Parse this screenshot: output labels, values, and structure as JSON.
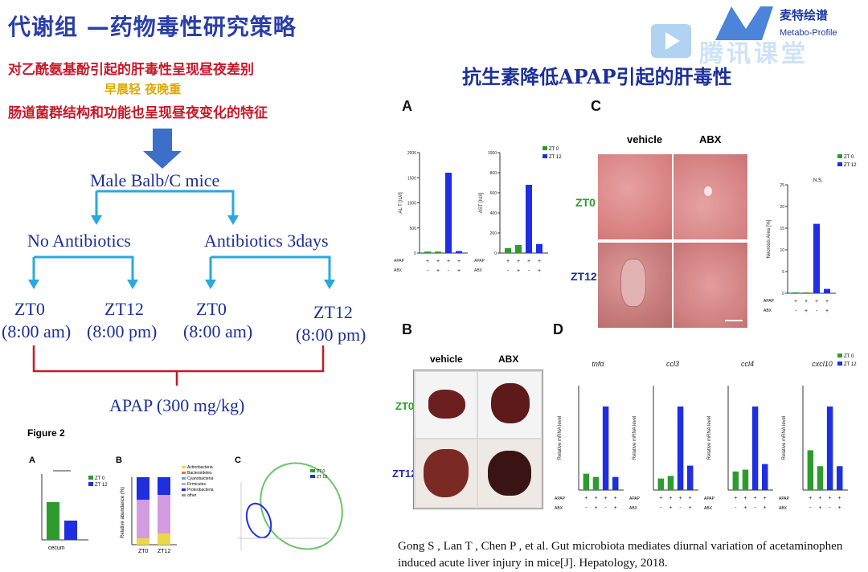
{
  "title": "代谢组 —药物毒性研究策略",
  "logo": {
    "brand_cn": "麦特绘谱",
    "brand_en": "Metabo-Profile",
    "watermark": "腾讯课堂"
  },
  "intro": {
    "line1": "对乙酰氨基酚引起的肝毒性呈现昼夜差别",
    "line2": "早晨轻 夜晚重",
    "line3": "肠道菌群结构和功能也呈现昼夜变化的特征"
  },
  "flow": {
    "root": "Male Balb/C mice",
    "left_branch": "No Antibiotics",
    "right_branch": "Antibiotics  3days",
    "leaves": [
      {
        "zt": "ZT0",
        "time": "(8:00 am)"
      },
      {
        "zt": "ZT12",
        "time": "(8:00 pm)"
      },
      {
        "zt": "ZT0",
        "time": "(8:00 am)"
      },
      {
        "zt": "ZT12",
        "time": "(8:00 pm)"
      }
    ],
    "treatment": "APAP (300 mg/kg)"
  },
  "figure2": {
    "caption": "Figure 2",
    "a_label": "A",
    "b_label": "B",
    "c_label": "C",
    "a_xlabel": "cecum",
    "a_legend": [
      "ZT 0",
      "ZT 12"
    ],
    "b_xlabels": [
      "ZT0",
      "ZT12"
    ],
    "b_ylabel": "Relative abundance (%)",
    "b_legend": [
      "Actinobacteria",
      "Bacteroidetes",
      "Cyanobacteria",
      "Firmicutes",
      "Proteobacteria",
      "other"
    ],
    "c_legend": [
      "ZT 0",
      "ZT 12"
    ]
  },
  "subtitle": "抗生素降低APAP引起的肝毒性",
  "panel_a": {
    "label": "A",
    "legend": [
      "ZT 0",
      "ZT 12"
    ],
    "row_labels": [
      "APAP",
      "ABX"
    ],
    "signs_apap": [
      "+",
      "+",
      "+",
      "+"
    ],
    "signs_abx": [
      "-",
      "+",
      "-",
      "+"
    ],
    "charts": [
      {
        "ylabel": "AL T [IU/l]",
        "ticks": [
          "2000",
          "1500",
          "1000",
          "500",
          "0"
        ]
      },
      {
        "ylabel": "AST [IU/l]",
        "ticks": [
          "1000",
          "800",
          "600",
          "400",
          "200",
          "0"
        ]
      }
    ]
  },
  "panel_b": {
    "label": "B",
    "cols": [
      "vehicle",
      "ABX"
    ],
    "rows": [
      "ZT0",
      "ZT12"
    ]
  },
  "panel_c": {
    "label": "C",
    "cols": [
      "vehicle",
      "ABX"
    ],
    "rows": [
      "ZT0",
      "ZT12"
    ],
    "ylabel": "Necrosis Area [%]",
    "ticks": [
      "25",
      "20",
      "15",
      "10",
      "5",
      "0"
    ],
    "legend": [
      "ZT 0",
      "ZT 12"
    ],
    "ns": "N.S."
  },
  "panel_d": {
    "label": "D",
    "genes": [
      "tnfα",
      "ccl3",
      "ccl4",
      "cxcl10"
    ],
    "ylabel": "Relative mRNA level",
    "legend": [
      "ZT 0",
      "ZT 12"
    ],
    "row_labels": [
      "APAP",
      "ABX"
    ]
  },
  "chart_data": [
    {
      "type": "bar",
      "title": "",
      "ylabel": "AL T [IU/l]",
      "ylim": [
        0,
        2000
      ],
      "categories": [
        "ZT0 APAP",
        "ZT0 APAP+ABX",
        "ZT12 APAP",
        "ZT12 APAP+ABX"
      ],
      "values": [
        30,
        30,
        1600,
        40
      ]
    },
    {
      "type": "bar",
      "title": "",
      "ylabel": "AST [IU/l]",
      "ylim": [
        0,
        1000
      ],
      "categories": [
        "ZT0 APAP",
        "ZT0 APAP+ABX",
        "ZT12 APAP",
        "ZT12 APAP+ABX"
      ],
      "values": [
        50,
        80,
        680,
        90
      ]
    },
    {
      "type": "bar",
      "title": "",
      "ylabel": "Necrosis Area [%]",
      "ylim": [
        0,
        25
      ],
      "categories": [
        "ZT0 APAP",
        "ZT0 APAP+ABX",
        "ZT12 APAP",
        "ZT12 APAP+ABX"
      ],
      "values": [
        0.2,
        0.2,
        16,
        1
      ]
    },
    {
      "type": "bar",
      "title": "tnfα",
      "ylabel": "Relative mRNA level",
      "categories": [
        "ZT0 APAP",
        "ZT0 APAP+ABX",
        "ZT12 APAP",
        "ZT12 APAP+ABX"
      ],
      "values": [
        1.0,
        0.8,
        5.1,
        0.8
      ]
    },
    {
      "type": "bar",
      "title": "ccl3",
      "ylabel": "Relative mRNA level",
      "categories": [
        "ZT0 APAP",
        "ZT0 APAP+ABX",
        "ZT12 APAP",
        "ZT12 APAP+ABX"
      ],
      "values": [
        0.9,
        1.1,
        6.5,
        1.9
      ]
    },
    {
      "type": "bar",
      "title": "ccl4",
      "ylabel": "Relative mRNA level",
      "categories": [
        "ZT0 APAP",
        "ZT0 APAP+ABX",
        "ZT12 APAP",
        "ZT12 APAP+ABX"
      ],
      "values": [
        1.0,
        1.1,
        4.5,
        1.4
      ]
    },
    {
      "type": "bar",
      "title": "cxcl10",
      "ylabel": "Relative mRNA level",
      "categories": [
        "ZT0 APAP",
        "ZT0 APAP+ABX",
        "ZT12 APAP",
        "ZT12 APAP+ABX"
      ],
      "values": [
        1.0,
        0.6,
        2.1,
        0.6
      ]
    }
  ],
  "reference": "Gong S , Lan T , Chen P , et al. Gut microbiota mediates diurnal variation of acetaminophen induced acute liver injury in mice[J]. Hepatology, 2018.",
  "colors": {
    "green": "#2e9b2e",
    "blue": "#1f2fe0",
    "title": "#2a3fa8",
    "red": "#c8182a",
    "cyan": "#29a9dc"
  }
}
